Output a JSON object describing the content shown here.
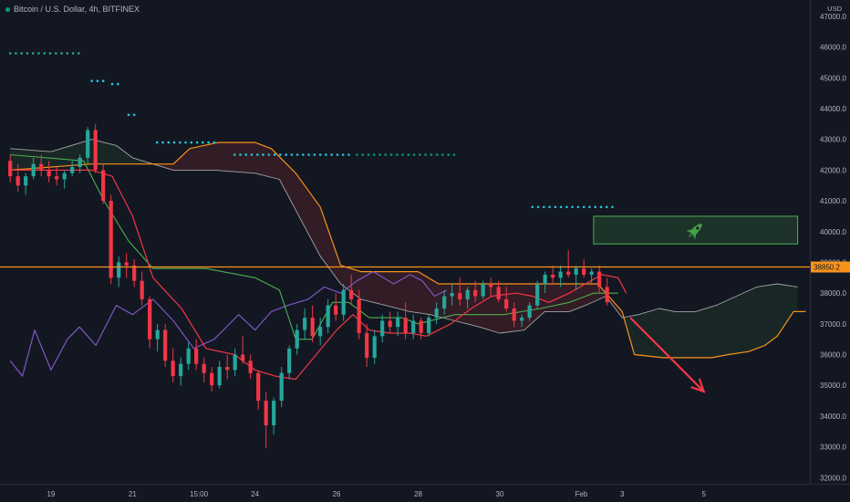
{
  "header": {
    "symbol_title": "Bitcoin / U.S. Dollar, 4h, BITFINEX",
    "currency": "USD"
  },
  "chart_data": {
    "type": "candlestick",
    "y_axis": {
      "range": [
        31700,
        47500
      ],
      "ticks": [
        32000,
        33000,
        34000,
        35000,
        36000,
        37000,
        38000,
        39000,
        40000,
        41000,
        42000,
        43000,
        44000,
        45000,
        46000,
        47000
      ],
      "tick_labels": [
        "32000.0",
        "33000.0",
        "34000.0",
        "35000.0",
        "36000.0",
        "37000.0",
        "38000.0",
        "39000.0",
        "40000.0",
        "41000.0",
        "42000.0",
        "43000.0",
        "44000.0",
        "45000.0",
        "46000.0",
        "47000.0"
      ]
    },
    "x_axis": {
      "range_days": [
        "Jan 18",
        "Feb 6"
      ],
      "tick_labels": [
        {
          "label": "19",
          "day": 19.0
        },
        {
          "label": "21",
          "day": 21.0
        },
        {
          "label": "15:00",
          "day": 22.625
        },
        {
          "label": "24",
          "day": 24.0
        },
        {
          "label": "26",
          "day": 26.0
        },
        {
          "label": "28",
          "day": 28.0
        },
        {
          "label": "30",
          "day": 30.0
        },
        {
          "label": "Feb",
          "day": 32.0
        },
        {
          "label": "3",
          "day": 33.0
        },
        {
          "label": "5",
          "day": 35.0
        }
      ]
    },
    "grid": false,
    "candles_ohlc": [
      [
        42300,
        42500,
        41600,
        41800
      ],
      [
        41800,
        42200,
        41300,
        41500
      ],
      [
        41500,
        41900,
        41200,
        41800
      ],
      [
        41800,
        42400,
        41700,
        42200
      ],
      [
        42200,
        42500,
        41800,
        42000
      ],
      [
        42000,
        42300,
        41600,
        41800
      ],
      [
        41800,
        42100,
        41500,
        41700
      ],
      [
        41700,
        42000,
        41400,
        41900
      ],
      [
        41900,
        42300,
        41800,
        42100
      ],
      [
        42100,
        42500,
        41900,
        42400
      ],
      [
        42400,
        43400,
        42200,
        43300
      ],
      [
        43300,
        43500,
        41900,
        42000
      ],
      [
        42000,
        42200,
        40900,
        41000
      ],
      [
        41000,
        41200,
        38300,
        38500
      ],
      [
        38500,
        39200,
        38200,
        39000
      ],
      [
        39000,
        39300,
        38500,
        38900
      ],
      [
        38900,
        39100,
        38200,
        38400
      ],
      [
        38400,
        38700,
        37600,
        37800
      ],
      [
        37800,
        37900,
        36200,
        36500
      ],
      [
        36500,
        37000,
        36100,
        36800
      ],
      [
        36800,
        37000,
        35600,
        35800
      ],
      [
        35800,
        36200,
        35100,
        35300
      ],
      [
        35300,
        35900,
        35000,
        35700
      ],
      [
        35700,
        36400,
        35500,
        36200
      ],
      [
        36200,
        36500,
        35500,
        35700
      ],
      [
        35700,
        35900,
        35100,
        35400
      ],
      [
        35400,
        35600,
        34800,
        35000
      ],
      [
        35000,
        35800,
        34900,
        35600
      ],
      [
        35600,
        36000,
        35200,
        35500
      ],
      [
        35500,
        36200,
        35300,
        36000
      ],
      [
        36000,
        36600,
        35700,
        35800
      ],
      [
        35800,
        36000,
        35200,
        35400
      ],
      [
        35400,
        35500,
        34200,
        34500
      ],
      [
        34500,
        34800,
        32950,
        33700
      ],
      [
        33700,
        34600,
        33400,
        34500
      ],
      [
        34500,
        35600,
        34300,
        35400
      ],
      [
        35400,
        36300,
        35200,
        36200
      ],
      [
        36200,
        37000,
        36000,
        36800
      ],
      [
        36800,
        37500,
        36500,
        37200
      ],
      [
        37200,
        37600,
        36400,
        36600
      ],
      [
        36600,
        37200,
        36300,
        36900
      ],
      [
        36900,
        37800,
        36700,
        37600
      ],
      [
        37600,
        38000,
        37100,
        37300
      ],
      [
        37300,
        38300,
        37100,
        38100
      ],
      [
        38100,
        38600,
        37600,
        37800
      ],
      [
        37800,
        38100,
        36500,
        36700
      ],
      [
        36700,
        37000,
        35600,
        35900
      ],
      [
        35900,
        36800,
        35700,
        36600
      ],
      [
        36600,
        37300,
        36400,
        37100
      ],
      [
        37100,
        37400,
        36700,
        36900
      ],
      [
        36900,
        37400,
        36600,
        37200
      ],
      [
        37200,
        37700,
        36500,
        36700
      ],
      [
        36700,
        37300,
        36500,
        37100
      ],
      [
        37100,
        37200,
        36500,
        36700
      ],
      [
        36700,
        37300,
        36600,
        37200
      ],
      [
        37200,
        37700,
        37000,
        37500
      ],
      [
        37500,
        38100,
        37300,
        37900
      ],
      [
        37900,
        38300,
        37600,
        38000
      ],
      [
        38000,
        38500,
        37600,
        37800
      ],
      [
        37800,
        38200,
        37500,
        38100
      ],
      [
        38100,
        38400,
        37700,
        37900
      ],
      [
        37900,
        38400,
        37800,
        38300
      ],
      [
        38300,
        38500,
        37900,
        38200
      ],
      [
        38200,
        38400,
        37700,
        37800
      ],
      [
        37800,
        38200,
        37400,
        37500
      ],
      [
        37500,
        37700,
        36900,
        37100
      ],
      [
        37100,
        37300,
        36900,
        37200
      ],
      [
        37200,
        37700,
        37100,
        37600
      ],
      [
        37600,
        38400,
        37500,
        38300
      ],
      [
        38300,
        38700,
        38000,
        38600
      ],
      [
        38600,
        38900,
        38300,
        38500
      ],
      [
        38500,
        38900,
        38200,
        38700
      ],
      [
        38700,
        39400,
        38500,
        38600
      ],
      [
        38600,
        38900,
        38100,
        38800
      ],
      [
        38800,
        39100,
        38500,
        38600
      ],
      [
        38600,
        38800,
        38300,
        38700
      ],
      [
        38700,
        38900,
        38000,
        38200
      ],
      [
        38200,
        38500,
        37600,
        37700
      ]
    ],
    "candle_start_day": 18.0,
    "candle_step_days": 0.19,
    "tenkan_sen": [
      [
        18.0,
        42000
      ],
      [
        20.0,
        42000
      ],
      [
        20.5,
        41800
      ],
      [
        21.0,
        40500
      ],
      [
        21.5,
        38500
      ],
      [
        22.2,
        37500
      ],
      [
        22.8,
        36200
      ],
      [
        23.5,
        36000
      ],
      [
        24.0,
        35500
      ],
      [
        24.5,
        35300
      ],
      [
        25.0,
        35200
      ],
      [
        25.5,
        36000
      ],
      [
        26.0,
        36800
      ],
      [
        26.4,
        37300
      ],
      [
        26.8,
        36800
      ],
      [
        27.3,
        36700
      ],
      [
        27.8,
        36700
      ],
      [
        28.2,
        36600
      ],
      [
        28.8,
        37000
      ],
      [
        29.3,
        37500
      ],
      [
        29.8,
        37900
      ],
      [
        30.4,
        38000
      ],
      [
        30.8,
        37900
      ],
      [
        31.2,
        37700
      ],
      [
        31.7,
        38000
      ],
      [
        32.1,
        38300
      ],
      [
        32.5,
        38600
      ],
      [
        32.9,
        38500
      ],
      [
        33.1,
        38000
      ]
    ],
    "kijun_sen": [
      [
        18.0,
        42500
      ],
      [
        19.8,
        42300
      ],
      [
        20.3,
        41000
      ],
      [
        20.9,
        39700
      ],
      [
        21.5,
        38800
      ],
      [
        22.8,
        38800
      ],
      [
        24.0,
        38500
      ],
      [
        24.6,
        38100
      ],
      [
        25.0,
        36500
      ],
      [
        25.4,
        36500
      ],
      [
        25.9,
        37700
      ],
      [
        26.3,
        37700
      ],
      [
        26.8,
        37200
      ],
      [
        27.6,
        37200
      ],
      [
        28.0,
        37000
      ],
      [
        28.9,
        37300
      ],
      [
        30.1,
        37300
      ],
      [
        31.0,
        37500
      ],
      [
        31.7,
        37700
      ],
      [
        32.3,
        38000
      ],
      [
        32.9,
        38000
      ]
    ],
    "chikou_span": [
      [
        18.0,
        35800
      ],
      [
        18.3,
        35300
      ],
      [
        18.6,
        36800
      ],
      [
        19.0,
        35500
      ],
      [
        19.4,
        36500
      ],
      [
        19.7,
        36900
      ],
      [
        20.1,
        36300
      ],
      [
        20.6,
        37600
      ],
      [
        21.0,
        37300
      ],
      [
        21.5,
        37800
      ],
      [
        22.0,
        37100
      ],
      [
        22.5,
        36200
      ],
      [
        23.0,
        36500
      ],
      [
        23.6,
        37300
      ],
      [
        24.0,
        36800
      ],
      [
        24.4,
        37400
      ],
      [
        24.8,
        37600
      ],
      [
        25.3,
        37800
      ],
      [
        25.7,
        38200
      ],
      [
        26.1,
        38000
      ],
      [
        26.5,
        38400
      ],
      [
        26.9,
        38700
      ],
      [
        27.4,
        38300
      ],
      [
        27.8,
        38600
      ],
      [
        28.1,
        38400
      ],
      [
        28.4,
        37900
      ],
      [
        28.7,
        38100
      ]
    ],
    "senkou_span_a": [
      [
        18.0,
        42700
      ],
      [
        19.0,
        42600
      ],
      [
        20.0,
        43000
      ],
      [
        20.6,
        42800
      ],
      [
        21.0,
        42400
      ],
      [
        21.5,
        42200
      ],
      [
        22.0,
        42000
      ],
      [
        22.6,
        42000
      ],
      [
        23.0,
        42000
      ],
      [
        24.0,
        41900
      ],
      [
        24.6,
        41700
      ],
      [
        25.0,
        40700
      ],
      [
        25.6,
        39200
      ],
      [
        26.1,
        38300
      ],
      [
        26.6,
        37800
      ],
      [
        27.2,
        37600
      ],
      [
        27.8,
        37400
      ],
      [
        28.3,
        37300
      ],
      [
        28.9,
        37100
      ],
      [
        29.5,
        36900
      ],
      [
        30.0,
        36700
      ],
      [
        30.6,
        36800
      ],
      [
        31.1,
        37400
      ],
      [
        31.7,
        37400
      ],
      [
        32.1,
        37600
      ],
      [
        32.6,
        37900
      ],
      [
        33.0,
        37200
      ],
      [
        33.4,
        37300
      ],
      [
        33.9,
        37500
      ],
      [
        34.3,
        37400
      ],
      [
        34.8,
        37400
      ],
      [
        35.3,
        37600
      ],
      [
        35.8,
        37900
      ],
      [
        36.3,
        38200
      ],
      [
        36.8,
        38300
      ],
      [
        37.3,
        38200
      ]
    ],
    "senkou_span_b": [
      [
        18.0,
        42000
      ],
      [
        20.0,
        42200
      ],
      [
        21.5,
        42200
      ],
      [
        22.0,
        42200
      ],
      [
        22.4,
        42700
      ],
      [
        23.1,
        42900
      ],
      [
        24.0,
        42900
      ],
      [
        24.4,
        42700
      ],
      [
        25.0,
        41900
      ],
      [
        25.6,
        40800
      ],
      [
        26.1,
        38900
      ],
      [
        26.6,
        38700
      ],
      [
        27.3,
        38700
      ],
      [
        28.0,
        38700
      ],
      [
        28.5,
        38300
      ],
      [
        29.1,
        38300
      ],
      [
        29.9,
        38300
      ],
      [
        30.6,
        38300
      ],
      [
        31.3,
        38300
      ],
      [
        31.8,
        38300
      ],
      [
        32.4,
        38300
      ],
      [
        33.0,
        37400
      ],
      [
        33.3,
        36000
      ],
      [
        34.0,
        35900
      ],
      [
        34.7,
        35900
      ],
      [
        35.2,
        35900
      ],
      [
        35.6,
        36000
      ],
      [
        36.1,
        36100
      ],
      [
        36.5,
        36300
      ],
      [
        36.8,
        36600
      ],
      [
        37.0,
        37000
      ],
      [
        37.2,
        37400
      ],
      [
        37.5,
        37400
      ]
    ],
    "resistance_level": {
      "value": 38850.2,
      "label": "38850.2",
      "color": "#f7931a"
    },
    "target_zone": {
      "from": 39600,
      "to": 40500,
      "day_from": 32.3,
      "day_to": 37.3,
      "icon": "rocket-icon"
    },
    "bearish_arrow": {
      "from": [
        33.2,
        37200
      ],
      "to": [
        35.0,
        34800
      ],
      "color": "#f23645"
    },
    "dotted_levels": [
      {
        "value": 45800,
        "day_from": 18.0,
        "day_to": 19.8,
        "color": "#26a69a"
      },
      {
        "value": 44900,
        "day_from": 20.0,
        "day_to": 20.4,
        "color": "#26c6da"
      },
      {
        "value": 44800,
        "day_from": 20.5,
        "day_to": 20.7,
        "color": "#26c6da"
      },
      {
        "value": 43800,
        "day_from": 20.9,
        "day_to": 21.1,
        "color": "#26c6da"
      },
      {
        "value": 42900,
        "day_from": 21.6,
        "day_to": 23.1,
        "color": "#26c6da"
      },
      {
        "value": 42500,
        "day_from": 23.5,
        "day_to": 26.4,
        "color": "#26c6da"
      },
      {
        "value": 42500,
        "day_from": 26.5,
        "day_to": 28.9,
        "color": "#089981"
      },
      {
        "value": 40800,
        "day_from": 30.8,
        "day_to": 32.8,
        "color": "#26c6da"
      }
    ],
    "colors": {
      "up": "#26a69a",
      "down": "#f23645",
      "tenkan": "#f23645",
      "kijun": "#4caf50",
      "chikou": "#7e57c2",
      "span_a": "#a5a5a5",
      "span_b": "#f7931a"
    }
  }
}
